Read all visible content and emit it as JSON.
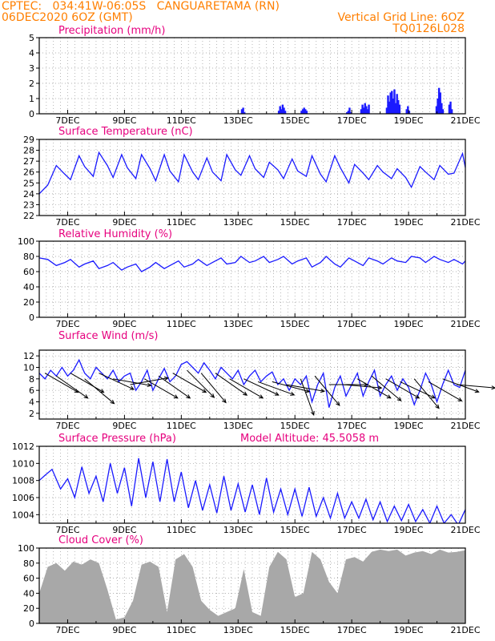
{
  "header": {
    "line1": "CPTEC:   034:41W-06:05S   CANGUARETAMA (RN)",
    "line2": "06DEC2020 6OZ (GMT)",
    "grid_note": "Vertical Grid Line: 6OZ",
    "code": "TQ0126L028"
  },
  "x_ticks": [
    "7DEC",
    "9DEC",
    "11DEC",
    "13DEC",
    "15DEC",
    "17DEC",
    "19DEC",
    "21DEC"
  ],
  "chart_data": [
    {
      "type": "bar",
      "title": "Precipitation (mm/h)",
      "ylim": [
        0,
        5
      ],
      "yticks": [
        "0",
        "1",
        "2",
        "3",
        "4",
        "5"
      ],
      "color": "#1a1aff",
      "bursts": [
        {
          "day": 13.1,
          "values": [
            0.3,
            0.4,
            0.1
          ]
        },
        {
          "day": 14.4,
          "values": [
            0.2,
            0.5,
            0.3,
            0.6,
            0.4,
            0.2
          ]
        },
        {
          "day": 15.2,
          "values": [
            0.2,
            0.3,
            0.4,
            0.3,
            0.2
          ]
        },
        {
          "day": 16.8,
          "values": [
            0.1,
            0.2,
            0.4,
            0.1
          ]
        },
        {
          "day": 17.3,
          "values": [
            0.3,
            0.6,
            0.4,
            0.7,
            0.5,
            0.3,
            0.6
          ]
        },
        {
          "day": 18.2,
          "values": [
            0.4,
            1.2,
            0.8,
            1.4,
            1.5,
            1.0,
            1.6,
            0.7,
            1.3,
            0.9,
            0.6
          ]
        },
        {
          "day": 18.9,
          "values": [
            0.3,
            0.5,
            0.2
          ]
        },
        {
          "day": 19.95,
          "values": [
            0.5,
            1.0,
            1.7,
            1.4,
            0.7,
            0.3
          ]
        },
        {
          "day": 20.4,
          "values": [
            0.6,
            0.8,
            0.3
          ]
        }
      ]
    },
    {
      "type": "line",
      "title": "Surface Temperature (nC)",
      "ylim": [
        22,
        29
      ],
      "yticks": [
        "22",
        "23",
        "24",
        "25",
        "26",
        "27",
        "28",
        "29"
      ],
      "color": "#1a1aff",
      "series": [
        {
          "x": [
            6.0,
            6.3,
            6.6,
            6.9,
            7.1,
            7.4,
            7.6,
            7.9,
            8.1,
            8.4,
            8.6,
            8.9,
            9.1,
            9.4,
            9.6,
            9.9,
            10.1,
            10.4,
            10.6,
            10.9,
            11.1,
            11.4,
            11.6,
            11.9,
            12.1,
            12.4,
            12.6,
            12.9,
            13.1,
            13.4,
            13.6,
            13.9,
            14.1,
            14.4,
            14.6,
            14.9,
            15.1,
            15.4,
            15.6,
            15.9,
            16.1,
            16.4,
            16.6,
            16.9,
            17.1,
            17.4,
            17.6,
            17.9,
            18.1,
            18.4,
            18.6,
            18.9,
            19.1,
            19.4,
            19.6,
            19.9,
            20.1,
            20.4,
            20.6,
            20.9,
            21.0
          ],
          "y": [
            24.0,
            24.8,
            26.6,
            25.8,
            25.3,
            27.5,
            26.5,
            25.6,
            27.8,
            26.6,
            25.5,
            27.6,
            26.4,
            25.4,
            27.6,
            26.3,
            25.2,
            27.6,
            26.1,
            25.1,
            27.6,
            26.0,
            25.3,
            27.3,
            26.0,
            25.2,
            27.6,
            26.2,
            25.7,
            27.5,
            26.3,
            25.5,
            26.9,
            26.2,
            25.4,
            27.2,
            26.1,
            25.6,
            27.5,
            25.8,
            25.1,
            27.5,
            26.4,
            25.0,
            26.7,
            25.9,
            25.3,
            26.6,
            26.0,
            25.4,
            26.3,
            25.5,
            24.6,
            26.5,
            26.0,
            25.3,
            26.6,
            25.8,
            25.9,
            27.7,
            26.4
          ]
        }
      ]
    },
    {
      "type": "line",
      "title": "Relative Humidity (%)",
      "ylim": [
        0,
        100
      ],
      "yticks": [
        "0",
        "20",
        "40",
        "60",
        "80",
        "100"
      ],
      "color": "#1a1aff",
      "series": [
        {
          "x": [
            6.0,
            6.3,
            6.6,
            6.9,
            7.1,
            7.4,
            7.6,
            7.9,
            8.1,
            8.4,
            8.6,
            8.9,
            9.1,
            9.4,
            9.6,
            9.9,
            10.1,
            10.4,
            10.6,
            10.9,
            11.1,
            11.4,
            11.6,
            11.9,
            12.1,
            12.4,
            12.6,
            12.9,
            13.1,
            13.4,
            13.6,
            13.9,
            14.1,
            14.4,
            14.6,
            14.9,
            15.1,
            15.4,
            15.6,
            15.9,
            16.1,
            16.4,
            16.6,
            16.9,
            17.1,
            17.4,
            17.6,
            17.9,
            18.1,
            18.4,
            18.6,
            18.9,
            19.1,
            19.4,
            19.6,
            19.9,
            20.1,
            20.4,
            20.6,
            20.9,
            21.0
          ],
          "y": [
            78,
            76,
            68,
            72,
            76,
            66,
            70,
            74,
            64,
            68,
            72,
            62,
            66,
            70,
            60,
            66,
            72,
            64,
            68,
            74,
            66,
            70,
            76,
            68,
            72,
            78,
            70,
            72,
            80,
            72,
            74,
            80,
            72,
            76,
            80,
            70,
            74,
            78,
            66,
            72,
            80,
            70,
            66,
            78,
            74,
            68,
            78,
            74,
            70,
            78,
            74,
            72,
            80,
            78,
            72,
            80,
            76,
            72,
            76,
            70,
            74
          ]
        }
      ]
    },
    {
      "type": "line",
      "title": "Surface Wind (m/s)",
      "ylim": [
        1,
        13
      ],
      "yticks": [
        "2",
        "4",
        "6",
        "8",
        "10",
        "12"
      ],
      "color": "#1a1aff",
      "series": [
        {
          "x": [
            6.0,
            6.2,
            6.4,
            6.6,
            6.8,
            7.0,
            7.2,
            7.4,
            7.6,
            7.8,
            8.0,
            8.2,
            8.4,
            8.6,
            8.8,
            9.0,
            9.2,
            9.4,
            9.6,
            9.8,
            10.0,
            10.2,
            10.4,
            10.6,
            10.8,
            11.0,
            11.2,
            11.4,
            11.6,
            11.8,
            12.0,
            12.2,
            12.4,
            12.6,
            12.8,
            13.0,
            13.2,
            13.4,
            13.6,
            13.8,
            14.0,
            14.2,
            14.4,
            14.6,
            14.8,
            15.0,
            15.2,
            15.4,
            15.6,
            15.8,
            16.0,
            16.2,
            16.4,
            16.6,
            16.8,
            17.0,
            17.2,
            17.4,
            17.6,
            17.8,
            18.0,
            18.2,
            18.4,
            18.6,
            18.8,
            19.0,
            19.2,
            19.4,
            19.6,
            19.8,
            20.0,
            20.2,
            20.4,
            20.6,
            20.8,
            21.0
          ],
          "y": [
            9.0,
            8.0,
            9.5,
            8.5,
            10.0,
            8.5,
            9.5,
            11.3,
            9.0,
            8.0,
            10.0,
            9.0,
            8.0,
            9.5,
            7.5,
            8.5,
            9.0,
            6.0,
            7.5,
            9.5,
            6.0,
            8.0,
            9.8,
            7.5,
            8.5,
            10.5,
            11.0,
            10.0,
            9.0,
            10.8,
            9.5,
            8.0,
            10.0,
            9.0,
            8.0,
            9.5,
            7.0,
            8.5,
            9.5,
            7.5,
            8.5,
            9.2,
            7.0,
            8.0,
            6.0,
            8.0,
            7.0,
            8.5,
            4.0,
            7.0,
            9.0,
            3.0,
            6.5,
            8.5,
            5.0,
            7.0,
            9.0,
            5.0,
            7.5,
            9.5,
            5.0,
            7.0,
            8.5,
            6.0,
            8.0,
            6.5,
            3.5,
            6.0,
            9.0,
            7.0,
            4.0,
            7.0,
            9.5,
            7.0,
            6.5,
            9.5
          ]
        }
      ],
      "vectors": [
        {
          "day": 6.2,
          "dir": 300,
          "speed": 9
        },
        {
          "day": 6.6,
          "dir": 305,
          "speed": 8.5
        },
        {
          "day": 7.1,
          "dir": 300,
          "speed": 9
        },
        {
          "day": 7.6,
          "dir": 310,
          "speed": 8
        },
        {
          "day": 8.1,
          "dir": 295,
          "speed": 9
        },
        {
          "day": 8.6,
          "dir": 280,
          "speed": 8
        },
        {
          "day": 9.2,
          "dir": 260,
          "speed": 7
        },
        {
          "day": 9.7,
          "dir": 300,
          "speed": 8
        },
        {
          "day": 10.2,
          "dir": 305,
          "speed": 8.5
        },
        {
          "day": 10.7,
          "dir": 300,
          "speed": 9
        },
        {
          "day": 11.2,
          "dir": 315,
          "speed": 9.5
        },
        {
          "day": 11.7,
          "dir": 320,
          "speed": 9
        },
        {
          "day": 12.2,
          "dir": 305,
          "speed": 9
        },
        {
          "day": 12.7,
          "dir": 300,
          "speed": 8
        },
        {
          "day": 13.2,
          "dir": 295,
          "speed": 8
        },
        {
          "day": 13.7,
          "dir": 290,
          "speed": 7.5
        },
        {
          "day": 14.2,
          "dir": 285,
          "speed": 7.5
        },
        {
          "day": 14.7,
          "dir": 280,
          "speed": 7
        },
        {
          "day": 15.2,
          "dir": 340,
          "speed": 8
        },
        {
          "day": 15.7,
          "dir": 320,
          "speed": 8.5
        },
        {
          "day": 16.2,
          "dir": 270,
          "speed": 7
        },
        {
          "day": 16.7,
          "dir": 275,
          "speed": 7
        },
        {
          "day": 17.2,
          "dir": 300,
          "speed": 8
        },
        {
          "day": 17.7,
          "dir": 310,
          "speed": 8.5
        },
        {
          "day": 18.2,
          "dir": 300,
          "speed": 8
        },
        {
          "day": 18.7,
          "dir": 295,
          "speed": 7.5
        },
        {
          "day": 19.2,
          "dir": 320,
          "speed": 8
        },
        {
          "day": 19.7,
          "dir": 300,
          "speed": 7.5
        },
        {
          "day": 20.2,
          "dir": 290,
          "speed": 8
        },
        {
          "day": 20.7,
          "dir": 275,
          "speed": 7
        }
      ]
    },
    {
      "type": "line",
      "title": "Surface Pressure (hPa)",
      "annotation": "Model Altitude: 45.5058 m",
      "ylim": [
        1003,
        1012
      ],
      "yticks": [
        "1004",
        "1006",
        "1008",
        "1010",
        "1012"
      ],
      "color": "#1a1aff",
      "series": [
        {
          "x": [
            6.0,
            6.2,
            6.45,
            6.75,
            7.0,
            7.25,
            7.5,
            7.75,
            8.0,
            8.25,
            8.5,
            8.75,
            9.0,
            9.25,
            9.5,
            9.75,
            10.0,
            10.25,
            10.5,
            10.75,
            11.0,
            11.25,
            11.5,
            11.75,
            12.0,
            12.25,
            12.5,
            12.75,
            13.0,
            13.25,
            13.5,
            13.75,
            14.0,
            14.25,
            14.5,
            14.75,
            15.0,
            15.25,
            15.5,
            15.75,
            16.0,
            16.25,
            16.5,
            16.75,
            17.0,
            17.25,
            17.5,
            17.75,
            18.0,
            18.25,
            18.5,
            18.75,
            19.0,
            19.25,
            19.5,
            19.75,
            20.0,
            20.25,
            20.5,
            20.75,
            21.0
          ],
          "y": [
            1008.0,
            1008.6,
            1009.3,
            1007.0,
            1008.2,
            1006.0,
            1009.6,
            1006.5,
            1008.5,
            1005.5,
            1010.0,
            1006.5,
            1009.5,
            1005.0,
            1010.6,
            1006.0,
            1010.2,
            1005.5,
            1010.5,
            1005.5,
            1009.0,
            1004.8,
            1008.0,
            1004.5,
            1007.5,
            1004.2,
            1008.5,
            1004.5,
            1007.6,
            1004.3,
            1007.5,
            1004.0,
            1008.3,
            1004.3,
            1007.0,
            1004.0,
            1007.0,
            1003.8,
            1007.2,
            1003.8,
            1006.0,
            1003.6,
            1006.5,
            1003.6,
            1005.5,
            1003.6,
            1005.8,
            1003.4,
            1005.5,
            1003.2,
            1005.0,
            1003.3,
            1005.2,
            1003.2,
            1004.6,
            1003.0,
            1005.0,
            1003.0,
            1004.0,
            1002.8,
            1004.6
          ]
        }
      ]
    },
    {
      "type": "area",
      "title": "Cloud Cover (%)",
      "ylim": [
        0,
        100
      ],
      "yticks": [
        "0",
        "20",
        "40",
        "60",
        "80",
        "100"
      ],
      "color": "#a8a8a8",
      "series": [
        {
          "x": [
            6.0,
            6.3,
            6.6,
            6.9,
            7.2,
            7.5,
            7.8,
            8.1,
            8.4,
            8.7,
            9.0,
            9.3,
            9.6,
            9.9,
            10.2,
            10.5,
            10.8,
            11.1,
            11.4,
            11.7,
            12.0,
            12.3,
            12.6,
            12.9,
            13.2,
            13.5,
            13.8,
            14.1,
            14.4,
            14.7,
            15.0,
            15.3,
            15.6,
            15.9,
            16.2,
            16.5,
            16.8,
            17.1,
            17.4,
            17.7,
            18.0,
            18.3,
            18.6,
            18.9,
            19.2,
            19.5,
            19.8,
            20.1,
            20.4,
            20.7,
            21.0
          ],
          "y": [
            40,
            75,
            80,
            70,
            82,
            78,
            85,
            80,
            45,
            5,
            8,
            30,
            78,
            82,
            75,
            15,
            85,
            92,
            75,
            30,
            18,
            10,
            15,
            20,
            72,
            15,
            10,
            75,
            95,
            85,
            35,
            40,
            95,
            85,
            55,
            40,
            85,
            88,
            82,
            95,
            98,
            96,
            98,
            90,
            94,
            96,
            92,
            98,
            94,
            95,
            97
          ]
        }
      ]
    }
  ]
}
